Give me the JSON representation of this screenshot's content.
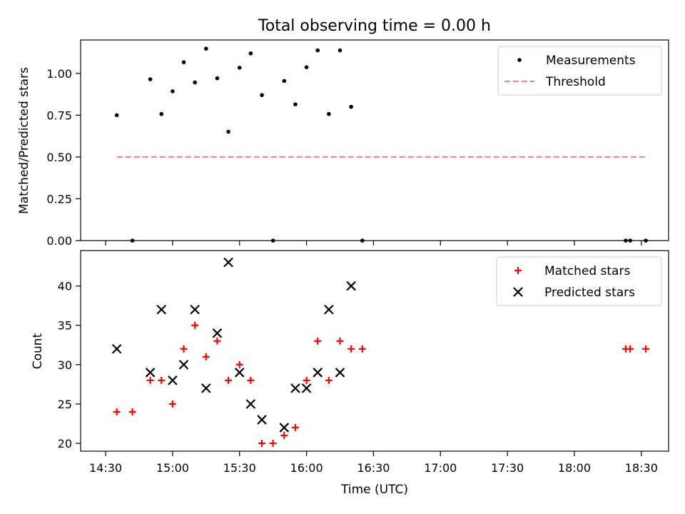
{
  "figure": {
    "title": "Total observing time = 0.00 h"
  },
  "chart_data": [
    {
      "type": "scatter",
      "ylabel": "Matched/Predicted stars",
      "ylim": [
        0,
        1.2
      ],
      "yticks": [
        "0.00",
        "0.25",
        "0.50",
        "0.75",
        "1.00"
      ],
      "legend_placement": "top-right",
      "series": [
        {
          "name": "Measurements",
          "style": "dot",
          "color": "#000000",
          "points": [
            {
              "t": "14:35",
              "y": 0.75
            },
            {
              "t": "14:42",
              "y": 0.0
            },
            {
              "t": "14:50",
              "y": 0.965
            },
            {
              "t": "14:55",
              "y": 0.757
            },
            {
              "t": "15:00",
              "y": 0.893
            },
            {
              "t": "15:05",
              "y": 1.067
            },
            {
              "t": "15:10",
              "y": 0.946
            },
            {
              "t": "15:15",
              "y": 1.148
            },
            {
              "t": "15:20",
              "y": 0.971
            },
            {
              "t": "15:25",
              "y": 0.651
            },
            {
              "t": "15:30",
              "y": 1.034
            },
            {
              "t": "15:35",
              "y": 1.12
            },
            {
              "t": "15:40",
              "y": 0.87
            },
            {
              "t": "15:45",
              "y": 0.0
            },
            {
              "t": "15:50",
              "y": 0.955
            },
            {
              "t": "15:55",
              "y": 0.815
            },
            {
              "t": "16:00",
              "y": 1.037
            },
            {
              "t": "16:05",
              "y": 1.138
            },
            {
              "t": "16:10",
              "y": 0.757
            },
            {
              "t": "16:15",
              "y": 1.138
            },
            {
              "t": "16:20",
              "y": 0.8
            },
            {
              "t": "16:25",
              "y": 0.0
            },
            {
              "t": "18:23",
              "y": 0.0
            },
            {
              "t": "18:25",
              "y": 0.0
            },
            {
              "t": "18:32",
              "y": 0.0
            }
          ]
        },
        {
          "name": "Threshold",
          "style": "dashed-line",
          "color": "#ff7f7f",
          "points": [
            {
              "t": "14:35",
              "y": 0.5
            },
            {
              "t": "18:32",
              "y": 0.5
            }
          ]
        }
      ]
    },
    {
      "type": "scatter",
      "xlabel": "Time (UTC)",
      "ylabel": "Count",
      "ylim": [
        19,
        44.5
      ],
      "yticks": [
        "20",
        "25",
        "30",
        "35",
        "40"
      ],
      "xticks": [
        "14:30",
        "15:00",
        "15:30",
        "16:00",
        "16:30",
        "17:00",
        "17:30",
        "18:00",
        "18:30"
      ],
      "legend_placement": "top-right",
      "series": [
        {
          "name": "Matched stars",
          "marker": "plus",
          "color": "#ff0000",
          "points": [
            {
              "t": "14:35",
              "y": 24
            },
            {
              "t": "14:42",
              "y": 24
            },
            {
              "t": "14:50",
              "y": 28
            },
            {
              "t": "14:55",
              "y": 28
            },
            {
              "t": "15:00",
              "y": 25
            },
            {
              "t": "15:05",
              "y": 32
            },
            {
              "t": "15:10",
              "y": 35
            },
            {
              "t": "15:15",
              "y": 31
            },
            {
              "t": "15:20",
              "y": 33
            },
            {
              "t": "15:25",
              "y": 28
            },
            {
              "t": "15:30",
              "y": 30
            },
            {
              "t": "15:35",
              "y": 28
            },
            {
              "t": "15:40",
              "y": 20
            },
            {
              "t": "15:45",
              "y": 20
            },
            {
              "t": "15:50",
              "y": 21
            },
            {
              "t": "15:55",
              "y": 22
            },
            {
              "t": "16:00",
              "y": 28
            },
            {
              "t": "16:05",
              "y": 33
            },
            {
              "t": "16:10",
              "y": 28
            },
            {
              "t": "16:15",
              "y": 33
            },
            {
              "t": "16:20",
              "y": 32
            },
            {
              "t": "16:25",
              "y": 32
            },
            {
              "t": "18:23",
              "y": 32
            },
            {
              "t": "18:25",
              "y": 32
            },
            {
              "t": "18:32",
              "y": 32
            }
          ]
        },
        {
          "name": "Predicted stars",
          "marker": "x",
          "color": "#000000",
          "points": [
            {
              "t": "14:35",
              "y": 32
            },
            {
              "t": "14:50",
              "y": 29
            },
            {
              "t": "14:55",
              "y": 37
            },
            {
              "t": "15:00",
              "y": 28
            },
            {
              "t": "15:05",
              "y": 30
            },
            {
              "t": "15:10",
              "y": 37
            },
            {
              "t": "15:15",
              "y": 27
            },
            {
              "t": "15:20",
              "y": 34
            },
            {
              "t": "15:25",
              "y": 43
            },
            {
              "t": "15:30",
              "y": 29
            },
            {
              "t": "15:35",
              "y": 25
            },
            {
              "t": "15:40",
              "y": 23
            },
            {
              "t": "15:50",
              "y": 22
            },
            {
              "t": "15:55",
              "y": 27
            },
            {
              "t": "16:00",
              "y": 27
            },
            {
              "t": "16:05",
              "y": 29
            },
            {
              "t": "16:10",
              "y": 37
            },
            {
              "t": "16:15",
              "y": 29
            },
            {
              "t": "16:20",
              "y": 40
            }
          ]
        }
      ]
    }
  ]
}
